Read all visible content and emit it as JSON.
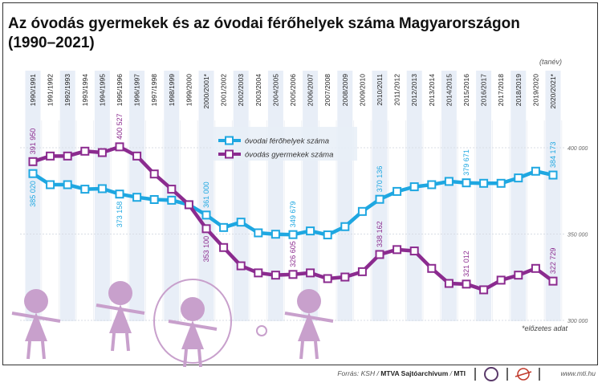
{
  "title": "Az óvodás gyermekek és az óvodai férőhelyek száma Magyarországon (1990–2021)",
  "unit_label": "(tanév)",
  "note": "*előzetes adat",
  "footer": {
    "source_prefix": "Forrás: KSH / ",
    "source_bold": "MTVA Sajtóarchívum",
    "source_sep": " / ",
    "source_mti": "MTI",
    "website": "www.mti.hu"
  },
  "colors": {
    "places": "#1ea7e1",
    "children": "#8b2b8f",
    "band": "#e8eef7",
    "illustration": "#c8a0cc"
  },
  "chart_data": {
    "type": "line",
    "title": "Az óvodás gyermekek és az óvodai férőhelyek száma Magyarországon (1990–2021)",
    "categories": [
      "1990/1991",
      "1991/1992",
      "1992/1993",
      "1993/1994",
      "1994/1995",
      "1995/1996",
      "1996/1997",
      "1997/1998",
      "1998/1999",
      "1999/2000",
      "2000/2001*",
      "2001/2002",
      "2002/2003",
      "2003/2004",
      "2004/2005",
      "2005/2006",
      "2006/2007",
      "2007/2008",
      "2008/2009",
      "2009/2010",
      "2010/2011",
      "2011/2012",
      "2012/2013",
      "2013/2014",
      "2014/2015",
      "2015/2016",
      "2016/2017",
      "2017/2018",
      "2018/2019",
      "2019/2020",
      "2020/2021*"
    ],
    "ylim": [
      300000,
      415000
    ],
    "yticks": [
      {
        "v": 300000,
        "label": "300 000"
      },
      {
        "v": 350000,
        "label": "350 000"
      },
      {
        "v": 400000,
        "label": "400 000"
      }
    ],
    "legend_position": "top-center",
    "series": [
      {
        "name": "óvodai férőhelyek száma",
        "color": "#1ea7e1",
        "values": [
          385020,
          378600,
          378600,
          376000,
          376300,
          373158,
          371300,
          370000,
          369600,
          367000,
          361000,
          353800,
          356900,
          350700,
          349900,
          349679,
          351800,
          349500,
          354300,
          363100,
          370136,
          374700,
          377400,
          378600,
          380500,
          379671,
          379400,
          379400,
          382500,
          386400,
          384173
        ],
        "labels": [
          {
            "i": 0,
            "text": "385 020",
            "pos": "below"
          },
          {
            "i": 5,
            "text": "373 158",
            "pos": "below"
          },
          {
            "i": 10,
            "text": "361 000",
            "pos": "above"
          },
          {
            "i": 15,
            "text": "349 679",
            "pos": "above"
          },
          {
            "i": 20,
            "text": "370 136",
            "pos": "above"
          },
          {
            "i": 25,
            "text": "379 671",
            "pos": "above"
          },
          {
            "i": 30,
            "text": "384 173",
            "pos": "above"
          }
        ]
      },
      {
        "name": "óvodás gyermekek száma",
        "color": "#8b2b8f",
        "values": [
          391950,
          395200,
          395200,
          398000,
          397200,
          400527,
          395200,
          384800,
          376000,
          367000,
          353100,
          342200,
          331600,
          327500,
          326200,
          326605,
          327500,
          324200,
          325100,
          328200,
          338162,
          341000,
          340200,
          330100,
          321400,
          321012,
          317700,
          323300,
          326200,
          330100,
          322729
        ],
        "labels": [
          {
            "i": 0,
            "text": "391 950",
            "pos": "above"
          },
          {
            "i": 5,
            "text": "400 527",
            "pos": "above"
          },
          {
            "i": 10,
            "text": "353 100",
            "pos": "below"
          },
          {
            "i": 15,
            "text": "326 605",
            "pos": "above"
          },
          {
            "i": 20,
            "text": "338 162",
            "pos": "above"
          },
          {
            "i": 25,
            "text": "321 012",
            "pos": "above"
          },
          {
            "i": 30,
            "text": "322 729",
            "pos": "above"
          }
        ]
      }
    ]
  }
}
